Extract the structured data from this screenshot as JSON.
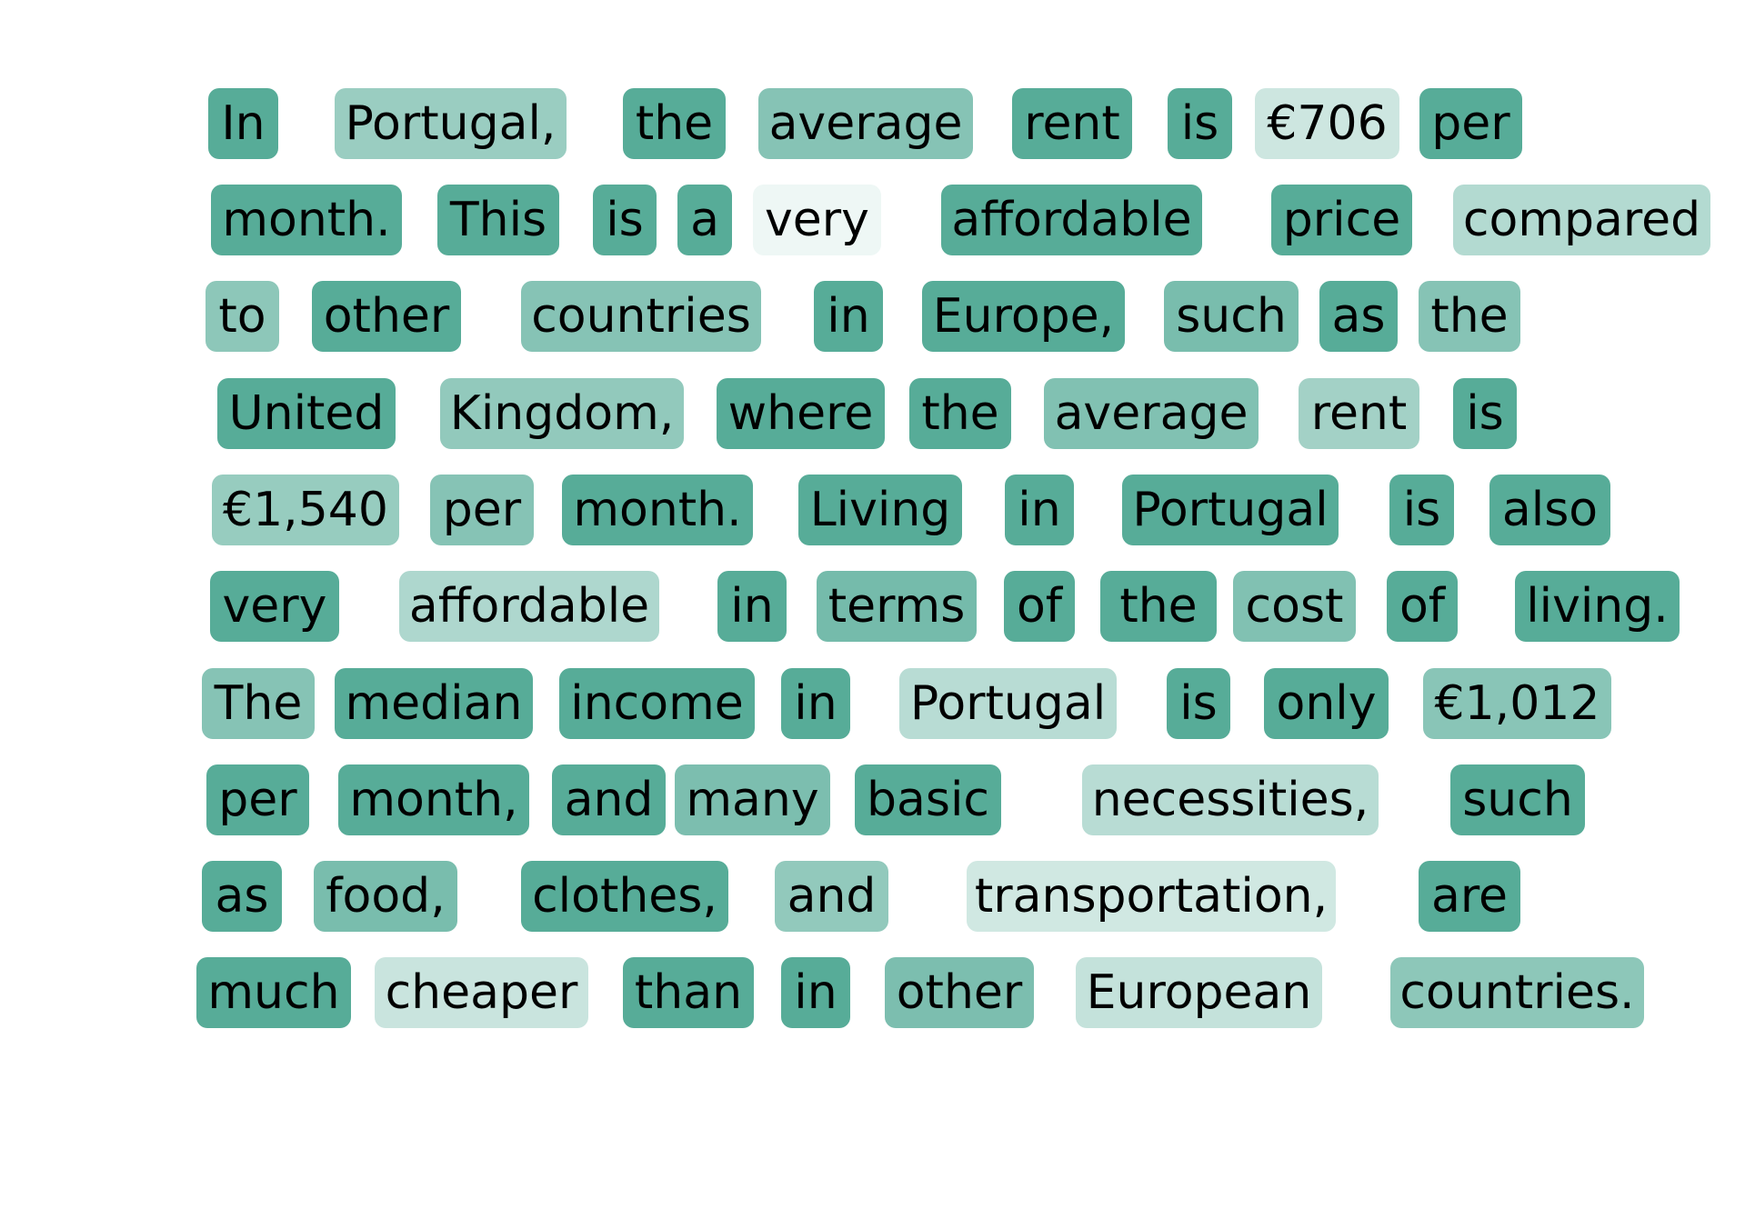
{
  "tokens": [
    {
      "text": "In",
      "weight": 1.0
    },
    {
      "text": "Portugal,",
      "weight": 0.6
    },
    {
      "text": "the",
      "weight": 1.0
    },
    {
      "text": "average",
      "weight": 0.72
    },
    {
      "text": "rent",
      "weight": 1.0
    },
    {
      "text": "is",
      "weight": 1.0
    },
    {
      "text": "€706",
      "weight": 0.3
    },
    {
      "text": "per",
      "weight": 1.0
    },
    {
      "text": "month.",
      "weight": 1.0
    },
    {
      "text": "This",
      "weight": 1.0
    },
    {
      "text": "is",
      "weight": 1.0
    },
    {
      "text": "a",
      "weight": 1.0
    },
    {
      "text": "very",
      "weight": 0.1
    },
    {
      "text": "affordable",
      "weight": 1.0
    },
    {
      "text": "price",
      "weight": 1.0
    },
    {
      "text": "compared",
      "weight": 0.45
    },
    {
      "text": "to",
      "weight": 0.68
    },
    {
      "text": "other",
      "weight": 1.0
    },
    {
      "text": "countries",
      "weight": 0.72
    },
    {
      "text": "in",
      "weight": 1.0
    },
    {
      "text": "Europe,",
      "weight": 1.0
    },
    {
      "text": "such",
      "weight": 0.8
    },
    {
      "text": "as",
      "weight": 1.0
    },
    {
      "text": "the",
      "weight": 0.72
    },
    {
      "text": "United",
      "weight": 1.0
    },
    {
      "text": "Kingdom,",
      "weight": 0.65
    },
    {
      "text": "where",
      "weight": 1.0
    },
    {
      "text": "the",
      "weight": 1.0
    },
    {
      "text": "average",
      "weight": 0.75
    },
    {
      "text": "rent",
      "weight": 0.55
    },
    {
      "text": "is",
      "weight": 1.0
    },
    {
      "text": "€1,540",
      "weight": 0.62
    },
    {
      "text": "per",
      "weight": 0.72
    },
    {
      "text": "month.",
      "weight": 1.0
    },
    {
      "text": "Living",
      "weight": 1.0
    },
    {
      "text": "in",
      "weight": 1.0
    },
    {
      "text": "Portugal",
      "weight": 1.0
    },
    {
      "text": "is",
      "weight": 1.0
    },
    {
      "text": "also",
      "weight": 1.0
    },
    {
      "text": "very",
      "weight": 1.0
    },
    {
      "text": "affordable",
      "weight": 0.48
    },
    {
      "text": "in",
      "weight": 1.0
    },
    {
      "text": "terms",
      "weight": 0.82
    },
    {
      "text": "of",
      "weight": 1.0
    },
    {
      "text": "the",
      "weight": 1.0
    },
    {
      "text": "cost",
      "weight": 0.75
    },
    {
      "text": "of",
      "weight": 1.0
    },
    {
      "text": "living.",
      "weight": 1.0
    },
    {
      "text": "The",
      "weight": 0.72
    },
    {
      "text": "median",
      "weight": 1.0
    },
    {
      "text": "income",
      "weight": 1.0
    },
    {
      "text": "in",
      "weight": 1.0
    },
    {
      "text": "Portugal",
      "weight": 0.42
    },
    {
      "text": "is",
      "weight": 1.0
    },
    {
      "text": "only",
      "weight": 1.0
    },
    {
      "text": "€1,012",
      "weight": 0.7
    },
    {
      "text": "per",
      "weight": 1.0
    },
    {
      "text": "month,",
      "weight": 1.0
    },
    {
      "text": "and",
      "weight": 1.0
    },
    {
      "text": "many",
      "weight": 0.78
    },
    {
      "text": "basic",
      "weight": 1.0
    },
    {
      "text": "necessities,",
      "weight": 0.42
    },
    {
      "text": "such",
      "weight": 1.0
    },
    {
      "text": "as",
      "weight": 1.0
    },
    {
      "text": "food,",
      "weight": 0.8
    },
    {
      "text": "clothes,",
      "weight": 1.0
    },
    {
      "text": "and",
      "weight": 0.65
    },
    {
      "text": "transportation,",
      "weight": 0.28
    },
    {
      "text": "are",
      "weight": 1.0
    },
    {
      "text": "much",
      "weight": 1.0
    },
    {
      "text": "cheaper",
      "weight": 0.32
    },
    {
      "text": "than",
      "weight": 1.0
    },
    {
      "text": "in",
      "weight": 1.0
    },
    {
      "text": "other",
      "weight": 0.78
    },
    {
      "text": "European",
      "weight": 0.35
    },
    {
      "text": "countries.",
      "weight": 0.68
    }
  ],
  "colors": {
    "base": "#57ac98",
    "background": "#ffffff",
    "text": "#000000"
  }
}
